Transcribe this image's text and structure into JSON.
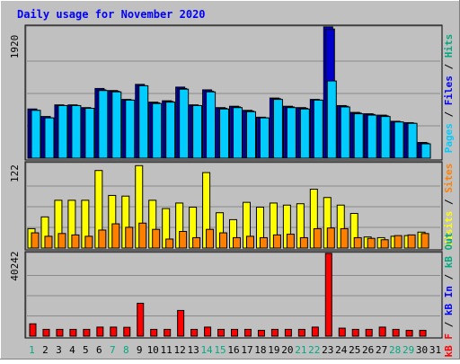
{
  "chart_data": [
    {
      "type": "bar",
      "title": "Daily usage for November 2020",
      "panel": "top",
      "ymax_label": "1920",
      "ylim": [
        0,
        1920
      ],
      "grid": true,
      "legend": [
        "Pages",
        "/",
        "Files",
        "/",
        "Hits"
      ],
      "legend_colors": [
        "#00ccff",
        "#000000",
        "#0000ff",
        "#000000",
        "#00aa80"
      ],
      "categories": [
        "1",
        "2",
        "3",
        "4",
        "5",
        "6",
        "7",
        "8",
        "9",
        "10",
        "11",
        "12",
        "13",
        "14",
        "15",
        "16",
        "17",
        "18",
        "19",
        "20",
        "21",
        "22",
        "23",
        "24",
        "25",
        "26",
        "27",
        "28",
        "29",
        "30",
        "31"
      ],
      "series": [
        {
          "name": "Hits",
          "color": "#0000ff",
          "values": [
            720,
            610,
            780,
            780,
            740,
            1020,
            990,
            860,
            1080,
            820,
            840,
            1040,
            780,
            1000,
            740,
            760,
            700,
            600,
            880,
            760,
            740,
            860,
            1920,
            770,
            670,
            650,
            630,
            540,
            520,
            230,
            0
          ]
        },
        {
          "name": "Files",
          "color": "#0000cc",
          "values": [
            700,
            590,
            770,
            770,
            730,
            1000,
            980,
            850,
            1060,
            810,
            830,
            1020,
            770,
            980,
            730,
            750,
            690,
            590,
            870,
            750,
            730,
            850,
            1890,
            760,
            660,
            640,
            620,
            530,
            510,
            220,
            0
          ]
        },
        {
          "name": "Pages",
          "color": "#00ccff",
          "values": [
            700,
            590,
            770,
            770,
            730,
            990,
            970,
            850,
            1060,
            800,
            820,
            1010,
            770,
            970,
            720,
            740,
            680,
            590,
            860,
            740,
            720,
            850,
            1130,
            750,
            650,
            630,
            610,
            530,
            510,
            210,
            0
          ]
        }
      ]
    },
    {
      "type": "bar",
      "panel": "middle",
      "ymax_label": "122",
      "ylim": [
        0,
        122
      ],
      "grid": true,
      "legend": [
        "Visits",
        "/",
        "Sites"
      ],
      "legend_colors": [
        "#ffff00",
        "#000000",
        "#ff8000"
      ],
      "series": [
        {
          "name": "Visits",
          "color": "#ffff00",
          "values": [
            28,
            45,
            69,
            69,
            69,
            112,
            76,
            75,
            119,
            69,
            57,
            65,
            59,
            109,
            51,
            41,
            66,
            59,
            65,
            62,
            64,
            85,
            73,
            62,
            50,
            16,
            15,
            17,
            18,
            23,
            0
          ]
        },
        {
          "name": "Sites",
          "color": "#ff8000",
          "values": [
            22,
            17,
            21,
            19,
            17,
            26,
            35,
            30,
            36,
            27,
            13,
            24,
            15,
            27,
            22,
            15,
            17,
            15,
            19,
            20,
            15,
            28,
            29,
            28,
            15,
            14,
            12,
            18,
            19,
            21,
            0
          ]
        }
      ]
    },
    {
      "type": "bar",
      "panel": "bottom",
      "ymax_label": "40242",
      "ylim": [
        0,
        40242
      ],
      "grid": true,
      "legend": [
        "kB F",
        "/",
        "kB In",
        "/",
        "kB Out"
      ],
      "legend_colors": [
        "#ff0000",
        "#000000",
        "#0000ff",
        "#000000",
        "#00aa80"
      ],
      "series": [
        {
          "name": "kB F",
          "color": "#ff0000",
          "values": [
            6000,
            3300,
            3300,
            3300,
            3300,
            4400,
            4400,
            4300,
            16000,
            3300,
            3300,
            12500,
            3300,
            4400,
            3300,
            3300,
            3300,
            2800,
            3300,
            3300,
            3300,
            4400,
            40242,
            3900,
            3300,
            3300,
            4400,
            3300,
            2800,
            2800,
            0
          ]
        }
      ]
    }
  ],
  "colors": {
    "frame_bg": "#c0c0c0",
    "title": "#0000ff",
    "day_weekend": "#00aa80",
    "day_weekday": "#000000"
  },
  "weekend_days": [
    1,
    7,
    8,
    14,
    15,
    21,
    22,
    28,
    29
  ]
}
